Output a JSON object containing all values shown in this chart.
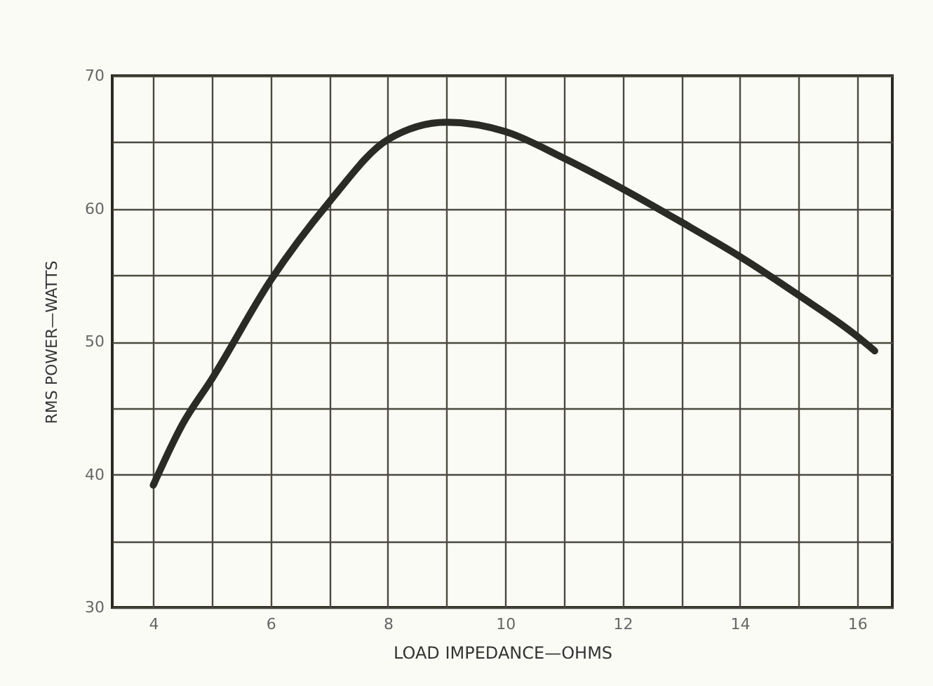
{
  "chart_data": {
    "type": "line",
    "xlabel": "LOAD IMPEDANCE—OHMS",
    "ylabel": "RMS POWER—WATTS",
    "x": [
      4,
      4.5,
      5,
      6,
      7,
      8,
      9,
      10,
      11,
      12,
      13,
      14,
      15,
      16,
      16.3
    ],
    "series": [
      {
        "color": "#2b2b25",
        "values": [
          39.2,
          43.8,
          47.2,
          54.6,
          60.5,
          65.2,
          66.5,
          65.8,
          63.8,
          61.5,
          59.0,
          56.4,
          53.5,
          50.4,
          49.3
        ]
      }
    ],
    "xlim": [
      3.3,
      16.6
    ],
    "xticks": [
      4,
      {
        "value": 5,
        "label": null
      },
      6,
      {
        "value": 7,
        "label": null
      },
      8,
      {
        "value": 9,
        "label": null
      },
      10,
      {
        "value": 11,
        "label": null
      },
      12,
      {
        "value": 13,
        "label": null
      },
      14,
      {
        "value": 15,
        "label": null
      },
      16
    ],
    "ylim": [
      30,
      70
    ],
    "yticks": [
      30,
      {
        "value": 35,
        "label": null
      },
      40,
      {
        "value": 45,
        "label": null
      },
      50,
      {
        "value": 55,
        "label": null
      },
      60,
      {
        "value": 65,
        "label": null
      },
      70
    ],
    "grid": true,
    "marker": "none",
    "line_style": "solid"
  }
}
